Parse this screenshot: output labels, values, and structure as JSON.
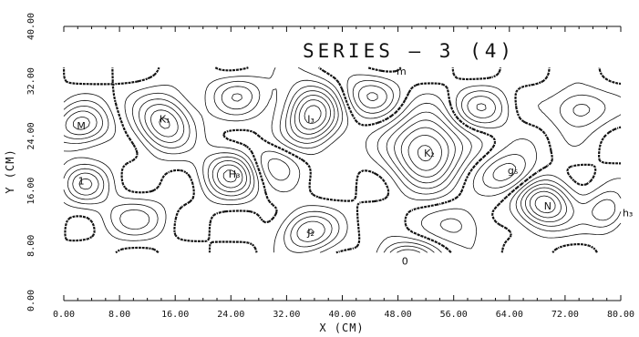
{
  "chart_data": {
    "type": "contour",
    "title": "SERIES   — 3 (4)",
    "xlabel": "X (CM)",
    "ylabel": "Y (CM)",
    "xlim": [
      0,
      80
    ],
    "ylim": [
      0,
      40
    ],
    "xticks": [
      "0.00",
      "8.00",
      "16.00",
      "24.00",
      "32.00",
      "40.00",
      "48.00",
      "56.00",
      "64.00",
      "72.00",
      "80.00"
    ],
    "yticks": [
      "0.00",
      "8.00",
      "16.00",
      "24.00",
      "32.00",
      "40.00"
    ],
    "data_extent": {
      "x": [
        0,
        80
      ],
      "y": [
        7,
        34
      ]
    },
    "annotations": [
      {
        "text": "M",
        "x": 2.5,
        "y": 25.5
      },
      {
        "text": "K₁",
        "x": 14.5,
        "y": 26.5
      },
      {
        "text": "I₃",
        "x": 35.5,
        "y": 26.5
      },
      {
        "text": "m",
        "x": 48.5,
        "y": 33.5
      },
      {
        "text": "K₂",
        "x": 52.5,
        "y": 21.5
      },
      {
        "text": "H₃",
        "x": 24.5,
        "y": 18.5
      },
      {
        "text": "g₅",
        "x": 64.5,
        "y": 19.0
      },
      {
        "text": "1",
        "x": 2.5,
        "y": 17.5
      },
      {
        "text": "N",
        "x": 69.5,
        "y": 13.8
      },
      {
        "text": "h₃",
        "x": 81.0,
        "y": 12.8
      },
      {
        "text": "J₂",
        "x": 35.5,
        "y": 10.0
      },
      {
        "text": "0",
        "x": 49.0,
        "y": 5.8
      }
    ]
  }
}
